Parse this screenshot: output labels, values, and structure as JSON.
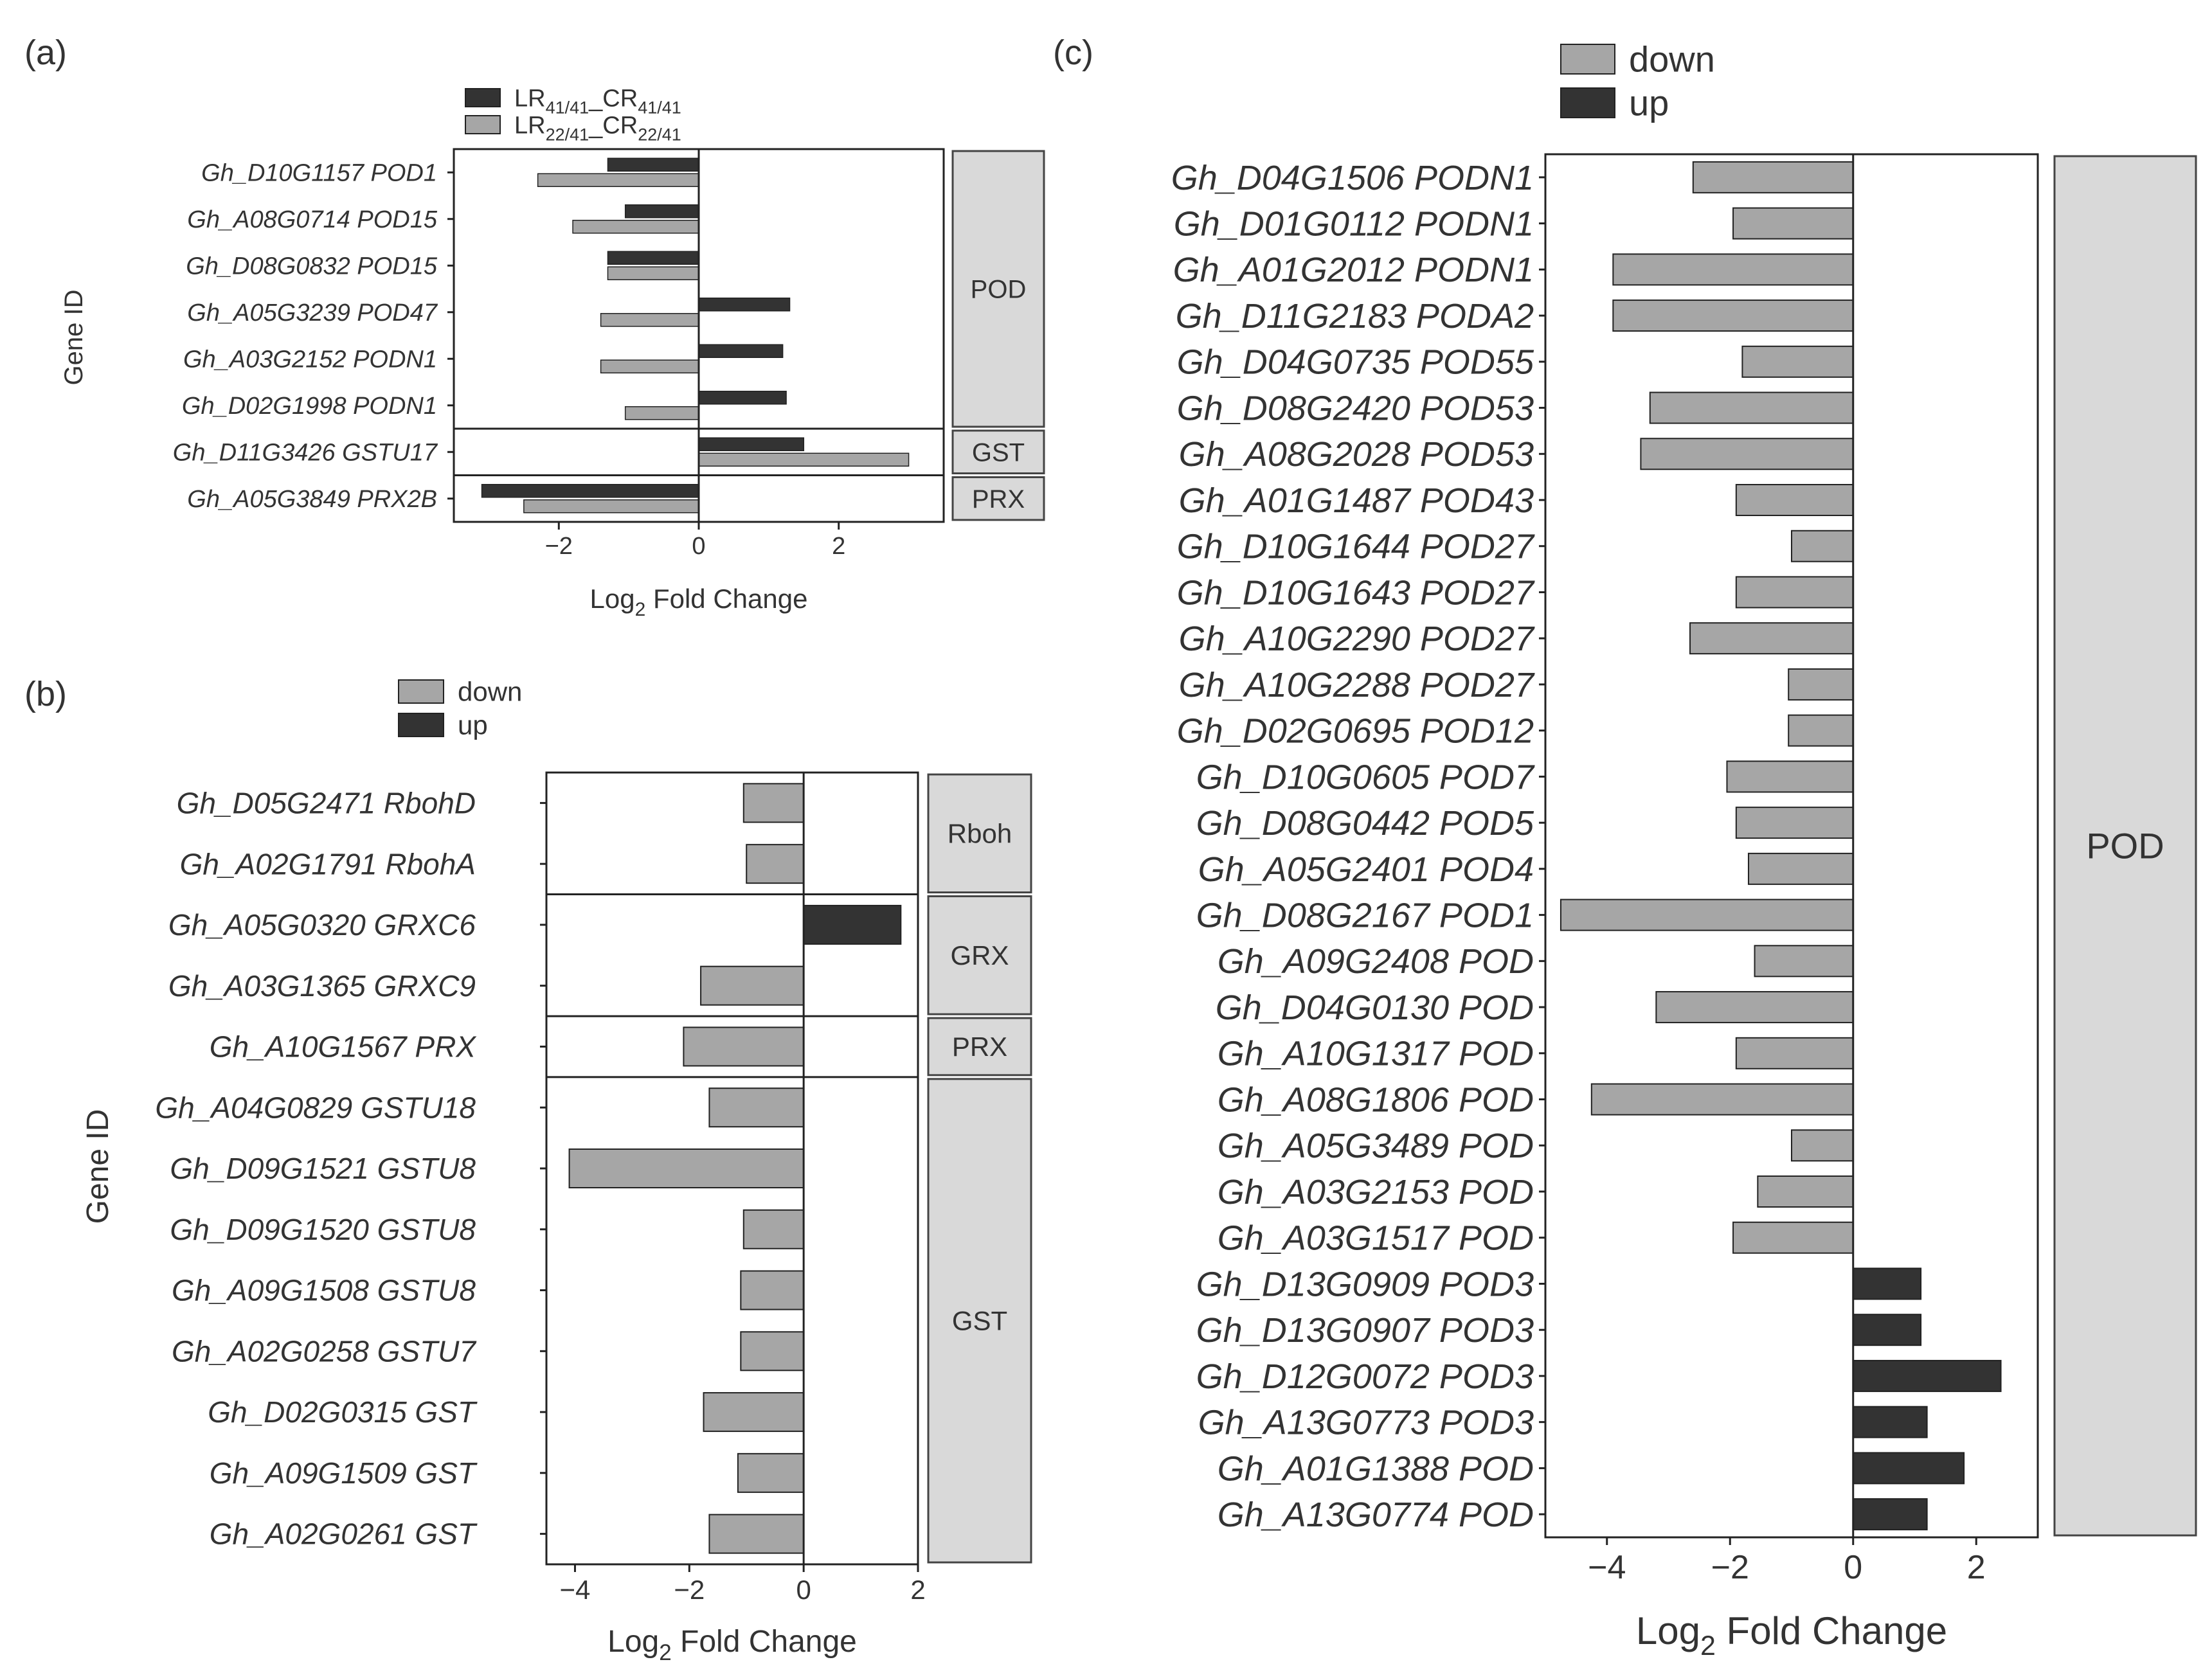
{
  "colors": {
    "down": "#a6a6a6",
    "up": "#333333",
    "group_fill": "#d9d9d9",
    "frame": "#222222"
  },
  "chart_data": [
    {
      "panel": "(a)",
      "type": "bar",
      "orientation": "horizontal",
      "ylabel": "Gene ID",
      "xlabel": "Log",
      "xlabel_sub": "2",
      "xlabel_rest": " Fold Change",
      "xlim": [
        -3.5,
        3.5
      ],
      "xticks": [
        -2,
        0,
        2
      ],
      "legend": [
        {
          "name": "LR",
          "sub1": "41/41",
          "mid": "_CR",
          "sub2": "41/41",
          "color": "up"
        },
        {
          "name": "LR",
          "sub1": "22/41",
          "mid": "_CR",
          "sub2": "22/41",
          "color": "down"
        }
      ],
      "categories": [
        "Gh_D10G1157 POD1",
        "Gh_A08G0714 POD15",
        "Gh_D08G0832 POD15",
        "Gh_A05G3239 POD47",
        "Gh_A03G2152 PODN1",
        "Gh_D02G1998 PODN1",
        "Gh_D11G3426 GSTU17",
        "Gh_A05G3849 PRX2B"
      ],
      "series": [
        {
          "name": "LR41/41_CR41/41",
          "color": "up",
          "values": [
            -1.3,
            -1.05,
            -1.3,
            1.3,
            1.2,
            1.25,
            1.5,
            -3.1
          ]
        },
        {
          "name": "LR22/41_CR22/41",
          "color": "down",
          "values": [
            -2.3,
            -1.8,
            -1.3,
            -1.4,
            -1.4,
            -1.05,
            3.0,
            -2.5
          ]
        }
      ],
      "groups": [
        {
          "label": "POD",
          "start": 0,
          "end": 5
        },
        {
          "label": "GST",
          "start": 6,
          "end": 6
        },
        {
          "label": "PRX",
          "start": 7,
          "end": 7
        }
      ]
    },
    {
      "panel": "(b)",
      "type": "bar",
      "orientation": "horizontal",
      "ylabel": "Gene ID",
      "xlabel": "Log",
      "xlabel_sub": "2",
      "xlabel_rest": " Fold Change",
      "xlim": [
        -4.5,
        2
      ],
      "xticks": [
        -4,
        -2,
        0,
        2
      ],
      "legend": [
        {
          "name": "down",
          "color": "down"
        },
        {
          "name": "up",
          "color": "up"
        }
      ],
      "categories": [
        "Gh_D05G2471 RbohD",
        "Gh_A02G1791 RbohA",
        "Gh_A05G0320 GRXC6",
        "Gh_A03G1365 GRXC9",
        "Gh_A10G1567 PRX",
        "Gh_A04G0829 GSTU18",
        "Gh_D09G1521 GSTU8",
        "Gh_D09G1520 GSTU8",
        "Gh_A09G1508 GSTU8",
        "Gh_A02G0258 GSTU7",
        "Gh_D02G0315 GST",
        "Gh_A09G1509 GST",
        "Gh_A02G0261 GST"
      ],
      "values": [
        -1.05,
        -1.0,
        1.7,
        -1.8,
        -2.1,
        -1.65,
        -4.1,
        -1.05,
        -1.1,
        -1.1,
        -1.75,
        -1.15,
        -1.65
      ],
      "groups": [
        {
          "label": "Rboh",
          "start": 0,
          "end": 1
        },
        {
          "label": "GRX",
          "start": 2,
          "end": 3
        },
        {
          "label": "PRX",
          "start": 4,
          "end": 4
        },
        {
          "label": "GST",
          "start": 5,
          "end": 12
        }
      ]
    },
    {
      "panel": "(c)",
      "type": "bar",
      "orientation": "horizontal",
      "xlabel": "Log",
      "xlabel_sub": "2",
      "xlabel_rest": " Fold Change",
      "xlim": [
        -5,
        3
      ],
      "xticks": [
        -4,
        -2,
        0,
        2
      ],
      "legend": [
        {
          "name": "down",
          "color": "down"
        },
        {
          "name": "up",
          "color": "up"
        }
      ],
      "categories": [
        "Gh_D04G1506 PODN1",
        "Gh_D01G0112 PODN1",
        "Gh_A01G2012 PODN1",
        "Gh_D11G2183 PODA2",
        "Gh_D04G0735 POD55",
        "Gh_D08G2420 POD53",
        "Gh_A08G2028 POD53",
        "Gh_A01G1487 POD43",
        "Gh_D10G1644 POD27",
        "Gh_D10G1643 POD27",
        "Gh_A10G2290 POD27",
        "Gh_A10G2288 POD27",
        "Gh_D02G0695 POD12",
        "Gh_D10G0605 POD7",
        "Gh_D08G0442 POD5",
        "Gh_A05G2401 POD4",
        "Gh_D08G2167 POD1",
        "Gh_A09G2408 POD",
        "Gh_D04G0130 POD",
        "Gh_A10G1317 POD",
        "Gh_A08G1806 POD",
        "Gh_A05G3489 POD",
        "Gh_A03G2153 POD",
        "Gh_A03G1517 POD",
        "Gh_D13G0909 POD3",
        "Gh_D13G0907 POD3",
        "Gh_D12G0072 POD3",
        "Gh_A13G0773 POD3",
        "Gh_A01G1388 POD",
        "Gh_A13G0774 POD"
      ],
      "values": [
        -2.6,
        -1.95,
        -3.9,
        -3.9,
        -1.8,
        -3.3,
        -3.45,
        -1.9,
        -1.0,
        -1.9,
        -2.65,
        -1.05,
        -1.05,
        -2.05,
        -1.9,
        -1.7,
        -4.75,
        -1.6,
        -3.2,
        -1.9,
        -4.25,
        -1.0,
        -1.55,
        -1.95,
        1.1,
        1.1,
        2.4,
        1.2,
        1.8,
        1.2
      ],
      "groups": [
        {
          "label": "POD",
          "start": 0,
          "end": 29
        }
      ]
    }
  ]
}
